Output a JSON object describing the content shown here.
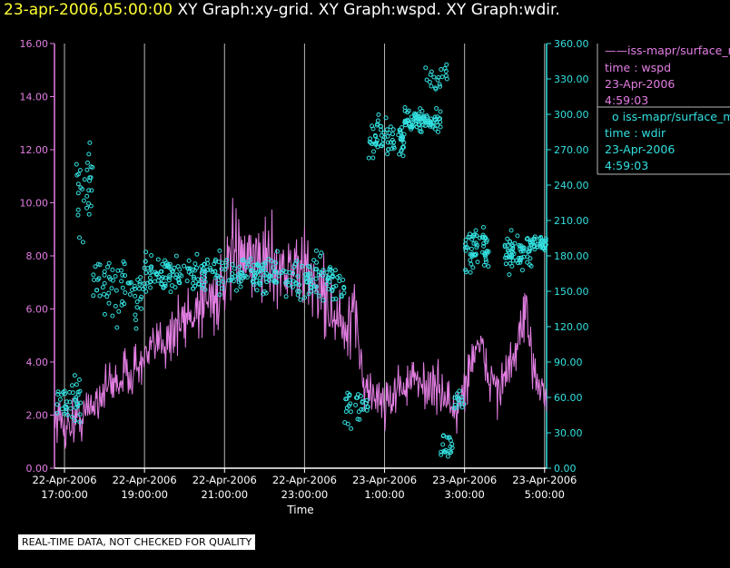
{
  "header": {
    "date": "23-apr-2006,05:00:00",
    "graphs": "XY Graph:xy-grid.  XY Graph:wspd.  XY Graph:wdir."
  },
  "notice": "REAL-TIME DATA, NOT CHECKED FOR QUALITY",
  "colors": {
    "wspd": "#e27ee2",
    "wdir": "#33e0e0",
    "left_axis": "#e27ee2",
    "right_axis": "#33e0e0"
  },
  "legend": [
    {
      "name": "iss-mapr/surface_m",
      "var": "time : wspd",
      "date": "23-Apr-2006",
      "time": "4:59:03"
    },
    {
      "name": "iss-mapr/surface_m",
      "var": "time : wdir",
      "date": "23-Apr-2006",
      "time": "4:59:03"
    }
  ],
  "chart_data": {
    "type": "line+scatter",
    "xlabel": "Time",
    "x_range_hours": [
      -0.25,
      12.05
    ],
    "x_ticks": [
      {
        "h": 0,
        "date": "22-Apr-2006",
        "time": "17:00:00"
      },
      {
        "h": 2,
        "date": "22-Apr-2006",
        "time": "19:00:00"
      },
      {
        "h": 4,
        "date": "22-Apr-2006",
        "time": "21:00:00"
      },
      {
        "h": 6,
        "date": "22-Apr-2006",
        "time": "23:00:00"
      },
      {
        "h": 8,
        "date": "23-Apr-2006",
        "time": "1:00:00"
      },
      {
        "h": 10,
        "date": "23-Apr-2006",
        "time": "3:00:00"
      },
      {
        "h": 12,
        "date": "23-Apr-2006",
        "time": "5:00:00"
      }
    ],
    "y_left": {
      "label": "wspd",
      "range": [
        0,
        16
      ],
      "ticks": [
        "0.00",
        "2.00",
        "4.00",
        "6.00",
        "8.00",
        "10.00",
        "12.00",
        "14.00",
        "16.00"
      ]
    },
    "y_right": {
      "label": "wdir",
      "range": [
        0,
        360
      ],
      "ticks": [
        "0.00",
        "30.00",
        "60.00",
        "90.00",
        "120.00",
        "150.00",
        "180.00",
        "210.00",
        "240.00",
        "270.00",
        "300.00",
        "330.00",
        "360.00"
      ]
    },
    "wspd_anchors": [
      [
        -0.25,
        2.0
      ],
      [
        0.0,
        1.6
      ],
      [
        0.5,
        2.0
      ],
      [
        1.0,
        3.0
      ],
      [
        1.5,
        3.5
      ],
      [
        2.0,
        4.0
      ],
      [
        2.5,
        5.0
      ],
      [
        3.0,
        5.5
      ],
      [
        3.5,
        6.5
      ],
      [
        4.0,
        6.5
      ],
      [
        4.25,
        8.5
      ],
      [
        4.5,
        7.5
      ],
      [
        5.0,
        8.0
      ],
      [
        5.5,
        7.5
      ],
      [
        6.0,
        7.5
      ],
      [
        6.5,
        6.5
      ],
      [
        7.0,
        5.0
      ],
      [
        7.3,
        5.5
      ],
      [
        7.5,
        3.0
      ],
      [
        8.0,
        2.5
      ],
      [
        8.5,
        3.2
      ],
      [
        9.0,
        3.2
      ],
      [
        9.5,
        2.8
      ],
      [
        9.8,
        2.0
      ],
      [
        10.0,
        3.0
      ],
      [
        10.3,
        4.8
      ],
      [
        10.6,
        3.5
      ],
      [
        10.9,
        3.0
      ],
      [
        11.2,
        4.0
      ],
      [
        11.5,
        5.5
      ],
      [
        11.8,
        3.5
      ],
      [
        12.05,
        2.8
      ]
    ],
    "wspd_noise": 1.3,
    "wdir_clusters": [
      {
        "from": -0.25,
        "to": 0.4,
        "center": 55,
        "spread": 30,
        "count": 40
      },
      {
        "from": 0.3,
        "to": 0.7,
        "center": 240,
        "spread": 60,
        "count": 30
      },
      {
        "from": 0.7,
        "to": 2.0,
        "center": 150,
        "spread": 45,
        "count": 70
      },
      {
        "from": 2.0,
        "to": 5.5,
        "center": 165,
        "spread": 25,
        "count": 220
      },
      {
        "from": 5.5,
        "to": 7.0,
        "center": 160,
        "spread": 30,
        "count": 90
      },
      {
        "from": 7.0,
        "to": 7.6,
        "center": 50,
        "spread": 30,
        "count": 30
      },
      {
        "from": 7.6,
        "to": 8.5,
        "center": 280,
        "spread": 25,
        "count": 70
      },
      {
        "from": 8.5,
        "to": 9.4,
        "center": 295,
        "spread": 15,
        "count": 90
      },
      {
        "from": 9.0,
        "to": 9.6,
        "center": 330,
        "spread": 20,
        "count": 20
      },
      {
        "from": 9.4,
        "to": 9.7,
        "center": 20,
        "spread": 20,
        "count": 20
      },
      {
        "from": 9.7,
        "to": 10.0,
        "center": 60,
        "spread": 20,
        "count": 14
      },
      {
        "from": 10.0,
        "to": 10.6,
        "center": 185,
        "spread": 30,
        "count": 60
      },
      {
        "from": 11.0,
        "to": 11.7,
        "center": 185,
        "spread": 25,
        "count": 70
      },
      {
        "from": 11.7,
        "to": 12.05,
        "center": 190,
        "spread": 10,
        "count": 30
      }
    ]
  }
}
